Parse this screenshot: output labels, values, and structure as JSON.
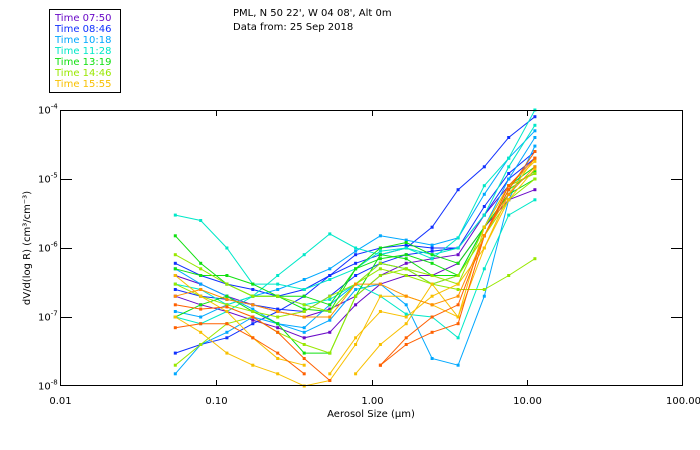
{
  "header": {
    "line1": "PML, N 50 22', W 04 08', Alt 0m",
    "line2": "Data from: 25 Sep 2018"
  },
  "legend": [
    {
      "label": "Time 07:50",
      "color": "#6a0ac8"
    },
    {
      "label": "Time 08:46",
      "color": "#1030ff"
    },
    {
      "label": "Time 10:18",
      "color": "#00a8ff"
    },
    {
      "label": "Time 11:28",
      "color": "#00e8c8"
    },
    {
      "label": "Time 13:19",
      "color": "#10e010"
    },
    {
      "label": "Time 14:46",
      "color": "#98e800"
    },
    {
      "label": "Time 15:55",
      "color": "#f8c000"
    }
  ],
  "chart_data": {
    "type": "line",
    "xlabel": "Aerosol Size (µm)",
    "ylabel": "dV/d(log R) (cm³/cm⁻³)",
    "xscale": "log",
    "yscale": "log",
    "xlim": [
      0.01,
      100
    ],
    "ylim": [
      1e-08,
      0.0001
    ],
    "xticks": [
      "0.01",
      "0.10",
      "1.00",
      "10.00",
      "100.00"
    ],
    "xtick_values": [
      0.01,
      0.1,
      1,
      10,
      100
    ],
    "yticks": [
      {
        "value": 0.0001,
        "base": "10",
        "exp": "-4"
      },
      {
        "value": 1e-05,
        "base": "10",
        "exp": "-5"
      },
      {
        "value": 1e-06,
        "base": "10",
        "exp": "-6"
      },
      {
        "value": 1e-07,
        "base": "10",
        "exp": "-7"
      },
      {
        "value": 1e-08,
        "base": "10",
        "exp": "-8"
      }
    ],
    "legend_position": "top-left-outside",
    "x": [
      0.055,
      0.08,
      0.118,
      0.173,
      0.25,
      0.37,
      0.54,
      0.79,
      1.14,
      1.67,
      2.45,
      3.6,
      5.3,
      7.6,
      11.2
    ],
    "series": [
      {
        "legend": 0,
        "values": [
          2e-07,
          1.5e-07,
          1.2e-07,
          9e-08,
          7e-08,
          5e-08,
          6e-08,
          1.5e-07,
          3e-07,
          4e-07,
          4e-07,
          6e-07,
          2e-06,
          5e-06,
          7e-06
        ]
      },
      {
        "legend": 0,
        "values": [
          4e-07,
          3e-07,
          2e-07,
          1.5e-07,
          1.2e-07,
          1e-07,
          1.3e-07,
          2e-07,
          4e-07,
          6e-07,
          7e-07,
          8e-07,
          3e-06,
          8e-06,
          1.2e-05
        ]
      },
      {
        "legend": 1,
        "values": [
          6e-07,
          4e-07,
          3e-07,
          2.5e-07,
          2e-07,
          2.5e-07,
          4e-07,
          6e-07,
          8e-07,
          1e-06,
          2e-06,
          7e-06,
          1.5e-05,
          4e-05,
          8e-05
        ]
      },
      {
        "legend": 1,
        "values": [
          3e-08,
          4e-08,
          5e-08,
          8e-08,
          1.2e-07,
          2e-07,
          4e-07,
          8e-07,
          1e-06,
          1.1e-06,
          1e-06,
          1e-06,
          3e-06,
          1e-05,
          2e-05
        ]
      },
      {
        "legend": 1,
        "values": [
          2.5e-07,
          2e-07,
          1.8e-07,
          1.5e-07,
          1.3e-07,
          1.2e-07,
          2e-07,
          4e-07,
          6e-07,
          8e-07,
          9e-07,
          1e-06,
          4e-06,
          1.2e-05,
          2.5e-05
        ]
      },
      {
        "legend": 2,
        "values": [
          1.2e-07,
          1e-07,
          1.5e-07,
          2e-07,
          2.5e-07,
          3.5e-07,
          5e-07,
          9e-07,
          1.5e-06,
          1.3e-06,
          1.1e-06,
          1.4e-06,
          6e-06,
          2e-05,
          5e-05
        ]
      },
      {
        "legend": 2,
        "values": [
          5e-07,
          3e-07,
          2e-07,
          1.3e-07,
          8e-08,
          6e-08,
          9e-08,
          2.5e-07,
          3e-07,
          1.5e-07,
          2.5e-08,
          2e-08,
          2e-07,
          5e-06,
          3e-05
        ]
      },
      {
        "legend": 2,
        "values": [
          1.5e-08,
          4e-08,
          6e-08,
          1e-07,
          8e-08,
          7e-08,
          1.5e-07,
          3e-07,
          6e-07,
          5e-07,
          3e-07,
          4e-07,
          2e-06,
          1e-05,
          4e-05
        ]
      },
      {
        "legend": 3,
        "values": [
          3e-06,
          2.5e-06,
          1e-06,
          3e-07,
          3e-07,
          2.5e-07,
          3.5e-07,
          5e-07,
          9e-07,
          1e-06,
          7e-07,
          1.4e-06,
          8e-06,
          2e-05,
          0.0001
        ]
      },
      {
        "legend": 3,
        "values": [
          3e-07,
          2.5e-07,
          1.5e-07,
          2e-07,
          4e-07,
          8e-07,
          1.6e-06,
          1e-06,
          8e-07,
          1e-06,
          8e-07,
          1e-06,
          3e-06,
          1.5e-05,
          6e-05
        ]
      },
      {
        "legend": 3,
        "values": [
          1e-07,
          8e-08,
          1.2e-07,
          2e-07,
          2e-07,
          1.5e-07,
          1.8e-07,
          3e-07,
          2e-07,
          1.1e-07,
          1e-07,
          5e-08,
          5e-07,
          3e-06,
          5e-06
        ]
      },
      {
        "legend": 4,
        "values": [
          1.5e-06,
          6e-07,
          3e-07,
          2e-07,
          2e-07,
          1.3e-07,
          1.2e-07,
          5e-07,
          1e-06,
          1.2e-06,
          8e-07,
          6e-07,
          2e-06,
          8e-06,
          1.5e-05
        ]
      },
      {
        "legend": 4,
        "values": [
          1e-07,
          1.5e-07,
          2e-07,
          1.2e-07,
          8e-08,
          3e-08,
          3e-08,
          2e-07,
          8e-07,
          7e-07,
          4e-07,
          4e-07,
          2e-06,
          6e-06,
          1e-05
        ]
      },
      {
        "legend": 4,
        "values": [
          5e-07,
          4e-07,
          4e-07,
          3e-07,
          2e-07,
          2e-07,
          1.5e-07,
          5e-07,
          7e-07,
          8e-07,
          6e-07,
          4e-07,
          1.5e-06,
          7e-06,
          1.3e-05
        ]
      },
      {
        "legend": 5,
        "values": [
          8e-07,
          5e-07,
          3e-07,
          2e-07,
          2e-07,
          1.5e-07,
          1.2e-07,
          3e-07,
          6e-07,
          5e-07,
          3e-07,
          2.5e-07,
          2.5e-07,
          4e-07,
          7e-07
        ]
      },
      {
        "legend": 5,
        "values": [
          2e-08,
          4e-08,
          8e-08,
          1e-07,
          6e-08,
          4e-08,
          3e-08,
          2e-07,
          4e-07,
          5e-07,
          4e-07,
          3e-07,
          2e-06,
          8e-06,
          1.2e-05
        ]
      },
      {
        "legend": 5,
        "values": [
          3e-07,
          2e-07,
          1.5e-07,
          1.2e-07,
          1e-07,
          1.2e-07,
          2e-07,
          3e-07,
          5e-07,
          4e-07,
          3e-07,
          4e-07,
          1.5e-06,
          5e-06,
          1e-05
        ]
      },
      {
        "legend": 6,
        "values": [
          1e-07,
          6e-08,
          3e-08,
          2e-08,
          1.5e-08,
          1e-08,
          1.2e-08,
          4e-08,
          2e-07,
          2e-07,
          1.5e-07,
          1e-07,
          1e-06,
          5e-06,
          1.4e-05
        ]
      },
      {
        "legend": 6,
        "values": [
          4e-07,
          2e-07,
          1.2e-07,
          5e-08,
          2.5e-08,
          2e-08,
          null,
          1.5e-08,
          4e-08,
          8e-08,
          3e-07,
          1e-07,
          2e-06,
          8e-06,
          1.8e-05
        ]
      },
      {
        "legend": 6,
        "values": [
          null,
          null,
          null,
          null,
          null,
          null,
          1.5e-08,
          5e-08,
          1.2e-07,
          1e-07,
          2e-07,
          3e-07,
          1e-06,
          6e-06,
          2e-05
        ]
      },
      {
        "legend": null,
        "color": "#ff6000",
        "values": [
          1.5e-07,
          1.3e-07,
          1.4e-07,
          1e-07,
          6e-08,
          2.5e-08,
          1.2e-08,
          null,
          2e-08,
          5e-08,
          1e-07,
          1.5e-07,
          1.5e-06,
          8e-06,
          2e-05
        ]
      },
      {
        "legend": null,
        "color": "#ff6000",
        "values": [
          7e-08,
          8e-08,
          8e-08,
          5e-08,
          3e-08,
          1.5e-08,
          null,
          null,
          2e-08,
          4e-08,
          6e-08,
          8e-08,
          1.5e-06,
          7e-06,
          2.5e-05
        ]
      },
      {
        "legend": null,
        "color": "#ff9000",
        "values": [
          2e-07,
          2.5e-07,
          1.8e-07,
          1.5e-07,
          1.2e-07,
          1e-07,
          1e-07,
          3e-07,
          3e-07,
          2e-07,
          1.5e-07,
          2e-07,
          1.5e-06,
          6e-06,
          1.5e-05
        ]
      }
    ]
  }
}
